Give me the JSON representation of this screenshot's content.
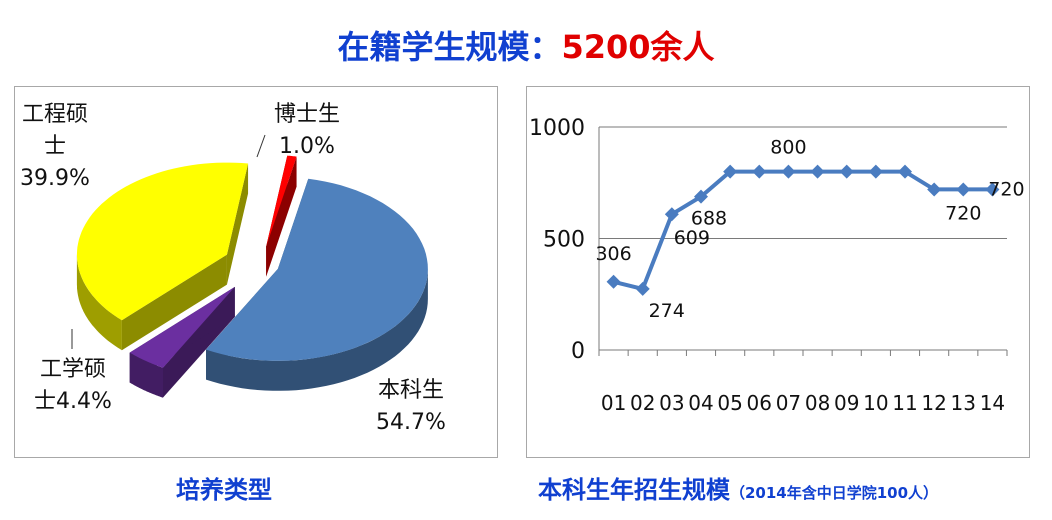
{
  "header": {
    "title_main": "在籍学生规模：",
    "title_highlight": "5200余人"
  },
  "captions": {
    "left": "培养类型",
    "right_main": "本科生年招生规模",
    "right_note": "（2014年含中日学院100人）"
  },
  "colors": {
    "title": "#1040d0",
    "highlight": "#e00000",
    "line": "#4a7cc0"
  },
  "chart_data": [
    {
      "type": "pie",
      "slices": [
        {
          "label_lines": [
            "本科生",
            "54.7%"
          ],
          "value": 54.7,
          "color": "#4f81bd"
        },
        {
          "label_lines": [
            "工学硕",
            "士4.4%"
          ],
          "value": 4.4,
          "color": "#6b2fa0"
        },
        {
          "label_lines": [
            "工程硕",
            "士",
            "39.9%"
          ],
          "value": 39.9,
          "color": "#ffff00"
        },
        {
          "label_lines": [
            "博士生",
            "1.0%"
          ],
          "value": 1.0,
          "color": "#ff0000"
        }
      ]
    },
    {
      "type": "line",
      "categories": [
        "01",
        "02",
        "03",
        "04",
        "05",
        "06",
        "07",
        "08",
        "09",
        "10",
        "11",
        "12",
        "13",
        "14"
      ],
      "series": [
        {
          "values": [
            306,
            274,
            609,
            688,
            800,
            800,
            800,
            800,
            800,
            800,
            800,
            720,
            720,
            720
          ]
        }
      ],
      "data_labels": [
        {
          "index": 0,
          "text": "306"
        },
        {
          "index": 1,
          "text": "274"
        },
        {
          "index": 2,
          "text": "609"
        },
        {
          "index": 3,
          "text": "688"
        },
        {
          "index": 6,
          "text": "800"
        },
        {
          "index": 12,
          "text": "720"
        },
        {
          "index": 13,
          "text": "720"
        }
      ],
      "yticks": [
        0,
        500,
        1000
      ],
      "ylim": [
        0,
        1000
      ],
      "grid": true
    }
  ]
}
